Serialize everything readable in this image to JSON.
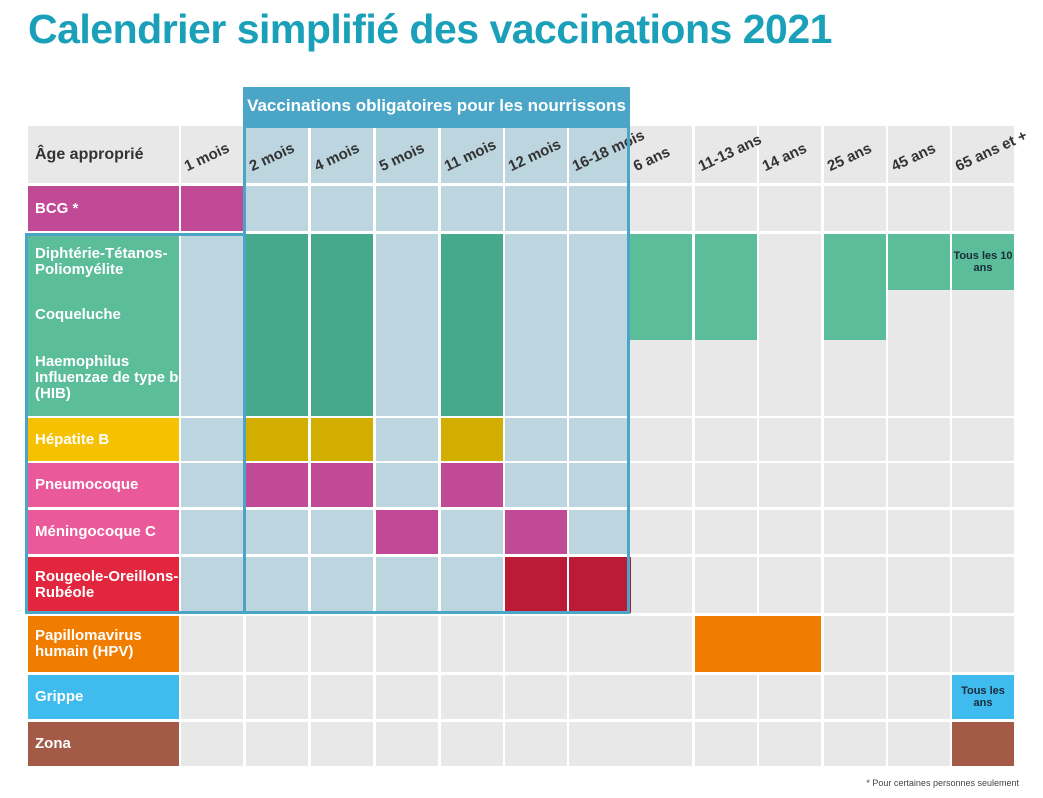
{
  "title": "Calendrier simplifié des vaccinations 2021",
  "banner": "Vaccinations obligatoires pour les nourrissons",
  "header_label": "Âge approprié",
  "ages": [
    "1 mois",
    "2 mois",
    "4 mois",
    "5 mois",
    "11 mois",
    "12 mois",
    "16-18 mois",
    "6 ans",
    "11-13 ans",
    "14 ans",
    "25 ans",
    "45 ans",
    "65 ans et +"
  ],
  "vaccines": [
    {
      "label": "BCG *",
      "color": "#c04a96"
    },
    {
      "label": "Diphtérie-Tétanos-Poliomyélite",
      "color": "#5bbd9a"
    },
    {
      "label": "Coqueluche",
      "color": "#5bbd9a"
    },
    {
      "label": "Haemophilus Influenzae de type b (HIB)",
      "color": "#5bbd9a"
    },
    {
      "label": "Hépatite B",
      "color": "#f5c100"
    },
    {
      "label": "Pneumocoque",
      "color": "#ea5a9a"
    },
    {
      "label": "Méningocoque C",
      "color": "#ea5a9a"
    },
    {
      "label": "Rougeole-Oreillons-Rubéole",
      "color": "#e2263e"
    },
    {
      "label": "Papillomavirus humain (HPV)",
      "color": "#f07d00"
    },
    {
      "label": "Grippe",
      "color": "#3fbbee"
    },
    {
      "label": "Zona",
      "color": "#a35b48"
    }
  ],
  "notes": {
    "dtp_65": "Tous les 10 ans",
    "grippe_65": "Tous les ans"
  },
  "footnote": "* Pour certaines personnes seulement",
  "colors": {
    "title": "#1aa0b8",
    "oblig_frame": "#4aa5c7",
    "green_dark": "#46a98c",
    "green": "#5bbd9a",
    "yellow_dark": "#d1ae00",
    "magenta": "#c04a96",
    "crimson": "#bc1b38",
    "orange": "#f07d00",
    "brown": "#a35b48",
    "blue": "#3fbbee"
  }
}
